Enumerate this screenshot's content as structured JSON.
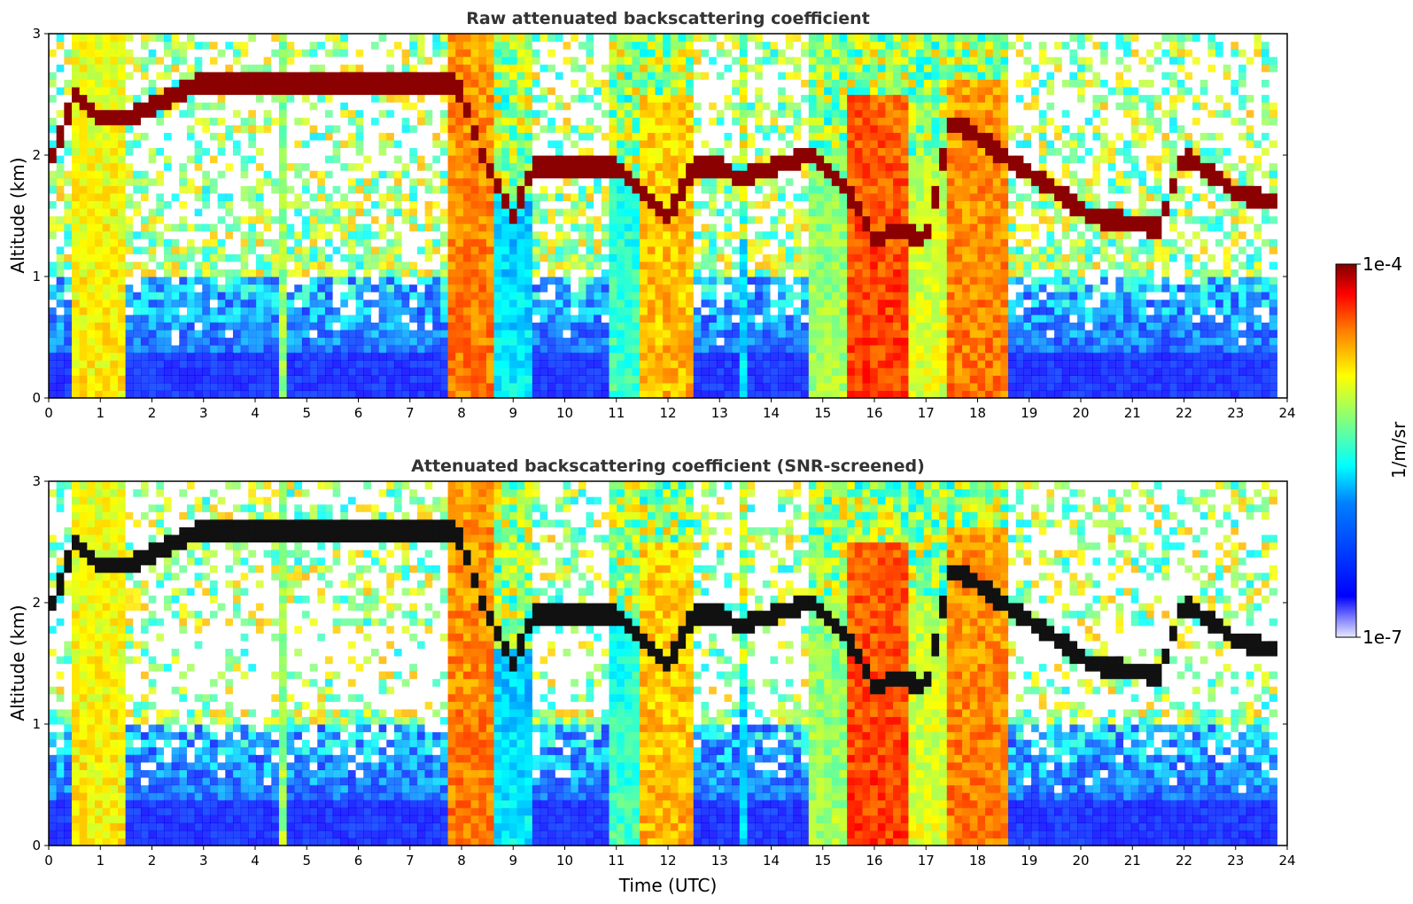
{
  "colors": {
    "jet": [
      "#00008f",
      "#0000ff",
      "#0080ff",
      "#00ffff",
      "#80ff80",
      "#ffff00",
      "#ff8000",
      "#ff0000",
      "#800000"
    ],
    "background": "#ffffff",
    "axis": "#000000",
    "title": "#333333"
  },
  "colorbar": {
    "label": "1/m/sr",
    "max_label": "1e-4",
    "min_label": "1e-7",
    "min": 1e-07,
    "max": 0.0001,
    "scale": "log"
  },
  "chart_data": [
    {
      "type": "heatmap",
      "title": "Raw attenuated backscattering coefficient",
      "xlabel": "",
      "ylabel": "Altitude (km)",
      "xlim": [
        0,
        24
      ],
      "ylim": [
        0,
        3
      ],
      "x_ticks": [
        "0",
        "1",
        "2",
        "3",
        "4",
        "5",
        "6",
        "7",
        "8",
        "9",
        "10",
        "11",
        "12",
        "13",
        "14",
        "15",
        "16",
        "17",
        "18",
        "19",
        "20",
        "21",
        "22",
        "23",
        "24"
      ],
      "y_ticks": [
        "0",
        "1",
        "2",
        "3"
      ],
      "x_units": "hours UTC",
      "y_units": "km",
      "value_units": "1/m/sr",
      "screened": false,
      "aerosol_plumes": [
        {
          "start": 0.45,
          "end": 1.45,
          "top_km": 3.0,
          "intensity": "yellow-orange"
        },
        {
          "start": 4.45,
          "end": 4.6,
          "top_km": 3.0,
          "intensity": "cyan-orange"
        },
        {
          "start": 7.7,
          "end": 8.7,
          "top_km": 3.0,
          "intensity": "orange-red"
        },
        {
          "start": 8.7,
          "end": 9.4,
          "top_km": 1.6,
          "intensity": "cyan"
        },
        {
          "start": 10.9,
          "end": 11.4,
          "top_km": 1.8,
          "intensity": "cyan-green"
        },
        {
          "start": 11.4,
          "end": 12.5,
          "top_km": 2.5,
          "intensity": "orange"
        },
        {
          "start": 13.4,
          "end": 13.6,
          "top_km": 1.3,
          "intensity": "cyan"
        },
        {
          "start": 14.7,
          "end": 15.5,
          "top_km": 2.0,
          "intensity": "cyan-orange"
        },
        {
          "start": 15.5,
          "end": 16.6,
          "top_km": 2.5,
          "intensity": "red"
        },
        {
          "start": 16.6,
          "end": 17.4,
          "top_km": 2.0,
          "intensity": "green-orange"
        },
        {
          "start": 17.4,
          "end": 18.6,
          "top_km": 2.6,
          "intensity": "orange-red"
        }
      ],
      "cloud_layer_km": [
        [
          0.0,
          1.9
        ],
        [
          0.5,
          2.5
        ],
        [
          1.0,
          2.3
        ],
        [
          1.5,
          2.3
        ],
        [
          2.0,
          2.4
        ],
        [
          2.9,
          2.6
        ],
        [
          3.5,
          2.6
        ],
        [
          7.9,
          2.6
        ],
        [
          8.5,
          1.9
        ],
        [
          9.0,
          1.5
        ],
        [
          9.4,
          1.9
        ],
        [
          11.0,
          1.9
        ],
        [
          12.0,
          1.5
        ],
        [
          12.5,
          1.9
        ],
        [
          13.0,
          1.9
        ],
        [
          13.4,
          1.8
        ],
        [
          14.0,
          1.9
        ],
        [
          14.8,
          2.0
        ],
        [
          15.5,
          1.7
        ],
        [
          16.0,
          1.3
        ],
        [
          16.5,
          1.4
        ],
        [
          17.0,
          1.3
        ],
        [
          17.5,
          2.3
        ],
        [
          18.5,
          2.0
        ],
        [
          20.2,
          1.5
        ],
        [
          21.5,
          1.4
        ],
        [
          22.0,
          2.0
        ],
        [
          23.0,
          1.7
        ],
        [
          23.8,
          1.6
        ]
      ]
    },
    {
      "type": "heatmap",
      "title": "Attenuated backscattering coefficient (SNR-screened)",
      "xlabel": "Time (UTC)",
      "ylabel": "Altitude (km)",
      "xlim": [
        0,
        24
      ],
      "ylim": [
        0,
        3
      ],
      "x_ticks": [
        "0",
        "1",
        "2",
        "3",
        "4",
        "5",
        "6",
        "7",
        "8",
        "9",
        "10",
        "11",
        "12",
        "13",
        "14",
        "15",
        "16",
        "17",
        "18",
        "19",
        "20",
        "21",
        "22",
        "23",
        "24"
      ],
      "y_ticks": [
        "0",
        "1",
        "2",
        "3"
      ],
      "x_units": "hours UTC",
      "y_units": "km",
      "value_units": "1/m/sr",
      "screened": true
    }
  ]
}
